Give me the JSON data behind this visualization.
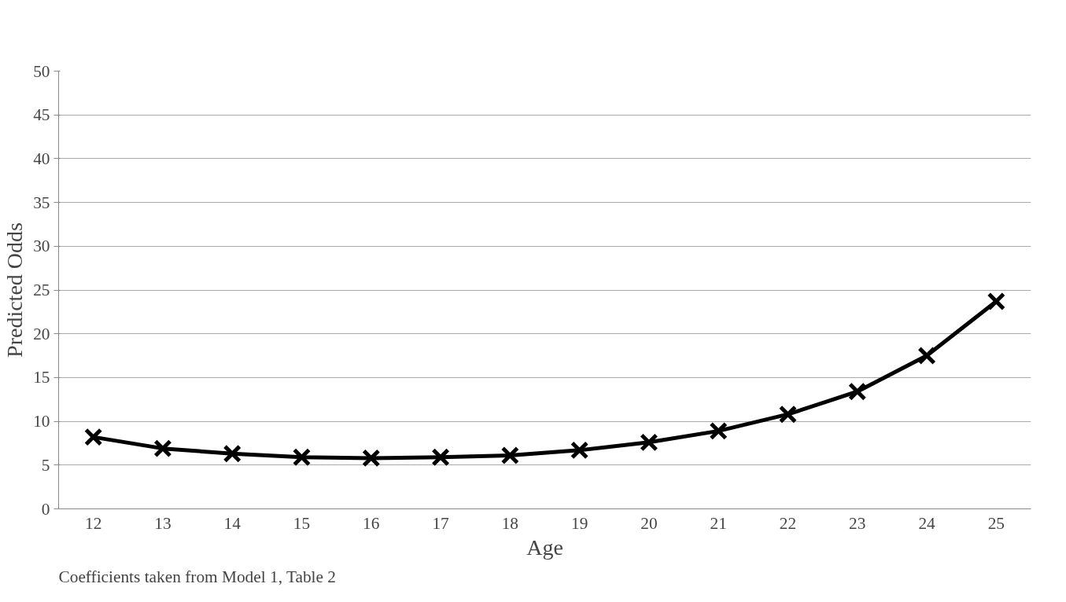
{
  "chart_data": {
    "type": "line",
    "xlabel": "Age",
    "ylabel": "Predicted Odds",
    "categories": [
      "12",
      "13",
      "14",
      "15",
      "16",
      "17",
      "18",
      "19",
      "20",
      "21",
      "22",
      "23",
      "24",
      "25"
    ],
    "series": [
      {
        "color": "#000000",
        "values": [
          8.2,
          6.9,
          6.3,
          5.9,
          5.8,
          5.9,
          6.1,
          6.7,
          7.6,
          8.9,
          10.8,
          13.4,
          17.5,
          23.7
        ]
      }
    ],
    "ylim": [
      0,
      50
    ],
    "yticks": [
      0,
      5,
      10,
      15,
      20,
      25,
      30,
      35,
      40,
      45,
      50
    ],
    "grid": "y",
    "marker": "cross",
    "line_style": "solid",
    "annotations": [
      "Coefficients taken from Model 1, Table 2"
    ]
  }
}
